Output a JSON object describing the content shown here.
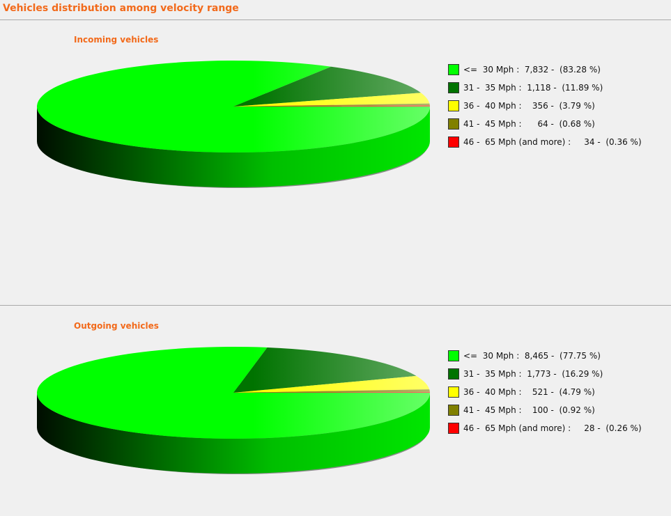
{
  "page": {
    "title": "Vehicles distribution among velocity range"
  },
  "chart_data": [
    {
      "type": "pie",
      "title": "Incoming vehicles",
      "slices": [
        {
          "range": "<=  30 Mph",
          "count": 7832,
          "count_label": "7,832",
          "percent": 83.28,
          "legend": "<=  30 Mph :  7,832 -  (83.28 %)",
          "color": "#00ff00"
        },
        {
          "range": "31 -  35 Mph",
          "count": 1118,
          "count_label": "1,118",
          "percent": 11.89,
          "legend": "31 -  35 Mph :  1,118 -  (11.89 %)",
          "color": "#007300"
        },
        {
          "range": "36 -  40 Mph",
          "count": 356,
          "count_label": "356",
          "percent": 3.79,
          "legend": "36 -  40 Mph :    356 -  (3.79 %)",
          "color": "#ffff00"
        },
        {
          "range": "41 -  45 Mph",
          "count": 64,
          "count_label": "64",
          "percent": 0.68,
          "legend": "41 -  45 Mph :      64 -  (0.68 %)",
          "color": "#808000"
        },
        {
          "range": "46 -  65 Mph (and more)",
          "count": 34,
          "count_label": "34",
          "percent": 0.36,
          "legend": "46 -  65 Mph (and more) :     34 -  (0.36 %)",
          "color": "#ff0000"
        }
      ]
    },
    {
      "type": "pie",
      "title": "Outgoing vehicles",
      "slices": [
        {
          "range": "<=  30 Mph",
          "count": 8465,
          "count_label": "8,465",
          "percent": 77.75,
          "legend": "<=  30 Mph :  8,465 -  (77.75 %)",
          "color": "#00ff00"
        },
        {
          "range": "31 -  35 Mph",
          "count": 1773,
          "count_label": "1,773",
          "percent": 16.29,
          "legend": "31 -  35 Mph :  1,773 -  (16.29 %)",
          "color": "#007300"
        },
        {
          "range": "36 -  40 Mph",
          "count": 521,
          "count_label": "521",
          "percent": 4.79,
          "legend": "36 -  40 Mph :    521 -  (4.79 %)",
          "color": "#ffff00"
        },
        {
          "range": "41 -  45 Mph",
          "count": 100,
          "count_label": "100",
          "percent": 0.92,
          "legend": "41 -  45 Mph :    100 -  (0.92 %)",
          "color": "#808000"
        },
        {
          "range": "46 -  65 Mph (and more)",
          "count": 28,
          "count_label": "28",
          "percent": 0.26,
          "legend": "46 -  65 Mph (and more) :     28 -  (0.26 %)",
          "color": "#ff0000"
        }
      ]
    }
  ]
}
